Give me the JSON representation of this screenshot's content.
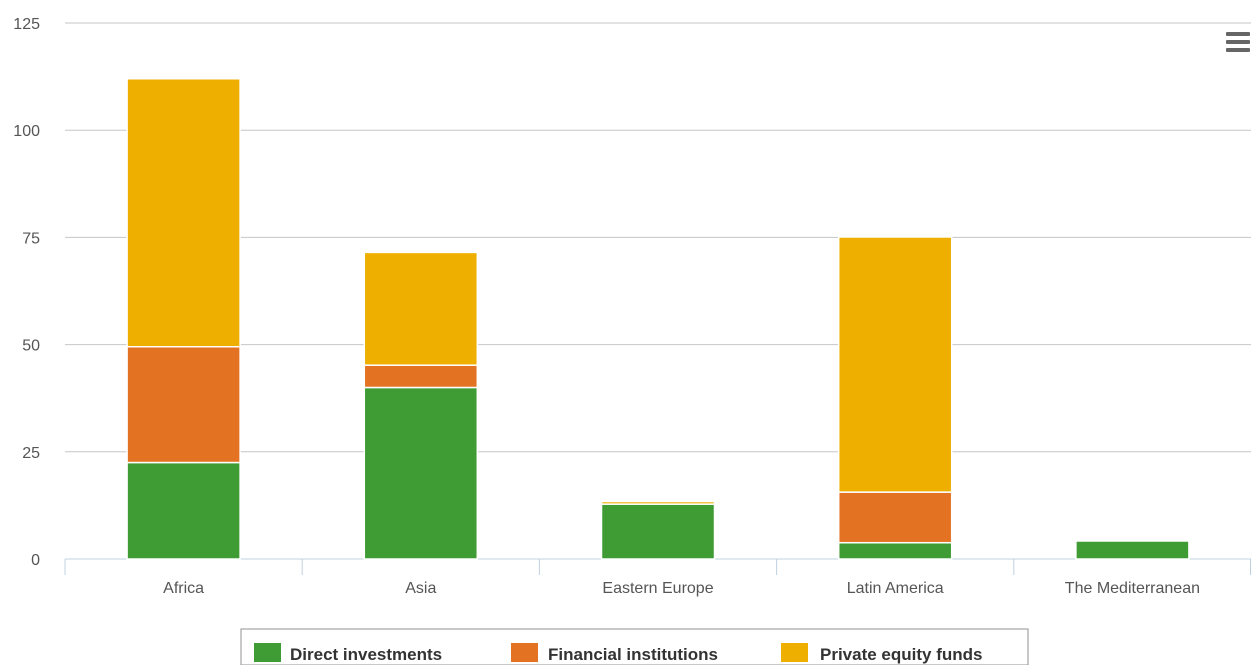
{
  "chart_data": {
    "type": "bar",
    "stacked": true,
    "categories": [
      "Africa",
      "Asia",
      "Eastern Europe",
      "Latin America",
      "The Mediterranean"
    ],
    "series": [
      {
        "name": "Direct investments",
        "color": "#3f9c35",
        "values": [
          22.5,
          40,
          12.8,
          3.8,
          4.2
        ]
      },
      {
        "name": "Financial institutions",
        "color": "#e37222",
        "values": [
          27,
          5.2,
          0,
          11.8,
          0
        ]
      },
      {
        "name": "Private equity funds",
        "color": "#eeaf00",
        "values": [
          62.5,
          26.3,
          0.6,
          59.5,
          0
        ]
      }
    ],
    "ylim": [
      0,
      125
    ],
    "yticks": [
      0,
      25,
      50,
      75,
      100,
      125
    ],
    "grid": true,
    "legend_position": "bottom"
  },
  "menu_icon": "hamburger-menu-icon"
}
